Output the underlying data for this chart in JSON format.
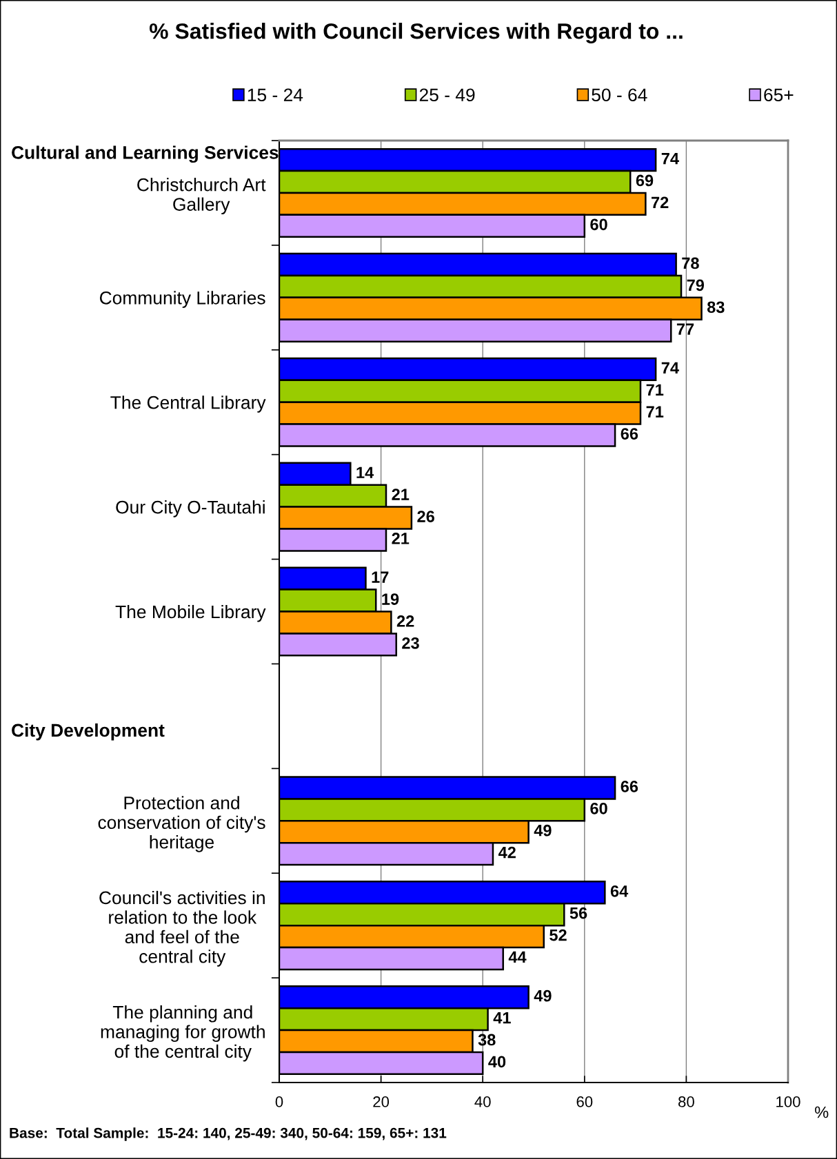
{
  "chart_data": {
    "type": "bar",
    "orientation": "horizontal",
    "title": "% Satisfied with Council Services with Regard to ...",
    "xlabel": "%",
    "categories": [
      "Christchurch Art Gallery",
      "Community Libraries",
      "The Central Library",
      "Our City O-Tautahi",
      "The Mobile Library",
      null,
      "Protection and conservation of city's heritage",
      "Council's activities in relation to the look and feel of the central city",
      "The planning and managing for growth of the central city"
    ],
    "series": [
      {
        "name": "15 - 24",
        "color": "#0000ff",
        "values": [
          74,
          78,
          74,
          14,
          17,
          null,
          66,
          64,
          49
        ]
      },
      {
        "name": "25 - 49",
        "color": "#99cc00",
        "values": [
          69,
          79,
          71,
          21,
          19,
          null,
          60,
          56,
          41
        ]
      },
      {
        "name": "50 - 64",
        "color": "#ff9900",
        "values": [
          72,
          83,
          71,
          26,
          22,
          null,
          49,
          52,
          38
        ]
      },
      {
        "name": "65+",
        "color": "#cc99ff",
        "values": [
          60,
          77,
          66,
          21,
          23,
          null,
          42,
          44,
          40
        ]
      }
    ],
    "xlim": [
      0,
      100
    ],
    "xticks": [
      0,
      20,
      40,
      60,
      80,
      100
    ],
    "grid": "x",
    "legend": "top",
    "data_labels": true,
    "annotations": [
      "Cultural and Learning Services",
      "City Development",
      "Base:  Total Sample:  15-24: 140, 25-49: 340, 50-64: 159, 65+: 131"
    ]
  }
}
